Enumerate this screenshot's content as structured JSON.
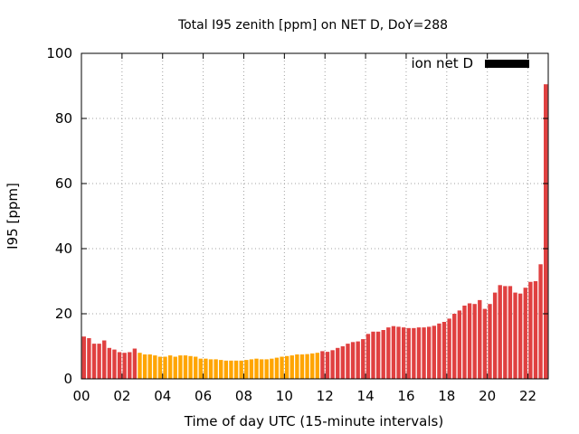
{
  "chart_data": {
    "type": "bar",
    "title": "Total I95 zenith [ppm] on NET D, DoY=288",
    "xlabel": "Time of day UTC (15-minute intervals)",
    "ylabel": "I95 [ppm]",
    "ylim": [
      0,
      100
    ],
    "xlim_hours": [
      0,
      23
    ],
    "yticks": [
      0,
      20,
      40,
      60,
      80,
      100
    ],
    "xticks": [
      "00",
      "02",
      "04",
      "06",
      "08",
      "10",
      "12",
      "14",
      "16",
      "18",
      "20",
      "22"
    ],
    "xtick_hours": [
      0,
      2,
      4,
      6,
      8,
      10,
      12,
      14,
      16,
      18,
      20,
      22
    ],
    "grid": true,
    "legend": {
      "label": "ion net D",
      "placement": "top-right",
      "color": "#000000"
    },
    "interval_minutes": 15,
    "colors": {
      "red": "#e04040",
      "orange": "#ffa500"
    },
    "values": [
      13.0,
      12.5,
      10.8,
      10.8,
      11.8,
      9.5,
      9.0,
      8.2,
      8.0,
      8.2,
      9.3,
      8.0,
      7.5,
      7.5,
      7.2,
      6.8,
      6.8,
      7.2,
      6.8,
      7.2,
      7.2,
      7.0,
      6.8,
      6.2,
      6.2,
      6.0,
      6.0,
      5.8,
      5.6,
      5.6,
      5.6,
      5.6,
      5.8,
      6.0,
      6.2,
      6.0,
      6.0,
      6.2,
      6.5,
      6.8,
      7.0,
      7.2,
      7.5,
      7.5,
      7.6,
      7.8,
      8.0,
      8.5,
      8.3,
      8.8,
      9.5,
      10.0,
      10.8,
      11.3,
      11.5,
      12.2,
      13.8,
      14.5,
      14.5,
      15.0,
      15.8,
      16.2,
      16.0,
      15.8,
      15.6,
      15.6,
      15.8,
      15.8,
      16.0,
      16.3,
      17.0,
      17.5,
      18.5,
      20.0,
      21.0,
      22.5,
      23.2,
      23.0,
      24.2,
      21.5,
      23.0,
      26.5,
      28.8,
      28.5,
      28.5,
      26.5,
      26.2,
      28.0,
      29.8,
      30.0,
      35.2,
      90.5
    ],
    "color_keys": [
      "red",
      "red",
      "red",
      "red",
      "red",
      "red",
      "red",
      "red",
      "red",
      "red",
      "red",
      "orange",
      "orange",
      "orange",
      "orange",
      "orange",
      "orange",
      "orange",
      "orange",
      "orange",
      "orange",
      "orange",
      "orange",
      "orange",
      "orange",
      "orange",
      "orange",
      "orange",
      "orange",
      "orange",
      "orange",
      "orange",
      "orange",
      "orange",
      "orange",
      "orange",
      "orange",
      "orange",
      "orange",
      "orange",
      "orange",
      "orange",
      "orange",
      "orange",
      "orange",
      "orange",
      "orange",
      "red",
      "red",
      "red",
      "red",
      "red",
      "red",
      "red",
      "red",
      "red",
      "red",
      "red",
      "red",
      "red",
      "red",
      "red",
      "red",
      "red",
      "red",
      "red",
      "red",
      "red",
      "red",
      "red",
      "red",
      "red",
      "red",
      "red",
      "red",
      "red",
      "red",
      "red",
      "red",
      "red",
      "red",
      "red",
      "red",
      "red",
      "red",
      "red",
      "red",
      "red",
      "red",
      "red",
      "red",
      "red"
    ]
  }
}
